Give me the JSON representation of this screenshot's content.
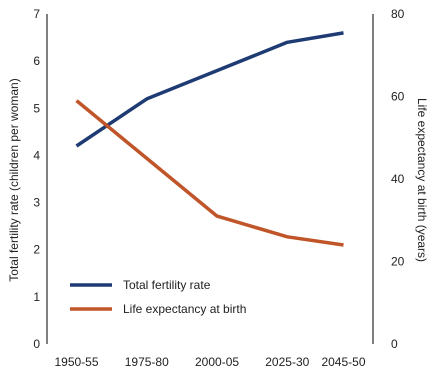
{
  "chart_data": {
    "type": "line",
    "categories": [
      "1950-55",
      "1975-80",
      "2000-05",
      "2025-30",
      "2045-50"
    ],
    "x": [
      1952.5,
      1977.5,
      2002.5,
      2027.5,
      2047.5
    ],
    "xlim": [
      1942,
      2058
    ],
    "series": [
      {
        "name": "Total fertility rate",
        "axis": "left",
        "color": "#1f3b73",
        "values": [
          4.2,
          5.2,
          5.8,
          6.4,
          6.6
        ]
      },
      {
        "name": "Life expectancy at birth",
        "axis": "right",
        "color": "#c0552a",
        "values": [
          59,
          45,
          31,
          26,
          24
        ]
      }
    ],
    "ylabel_left": "Total fertility rate (children per woman)",
    "ylabel_right": "Life expectancy at birth (years)",
    "ylim_left": [
      0,
      7
    ],
    "ylim_right": [
      0,
      80
    ],
    "yticks_left": [
      "0",
      "1",
      "2",
      "3",
      "4",
      "5",
      "6",
      "7"
    ],
    "yticks_right": [
      "0",
      "20",
      "40",
      "60",
      "80"
    ],
    "grid": false,
    "legend_position": "bottom-left"
  }
}
